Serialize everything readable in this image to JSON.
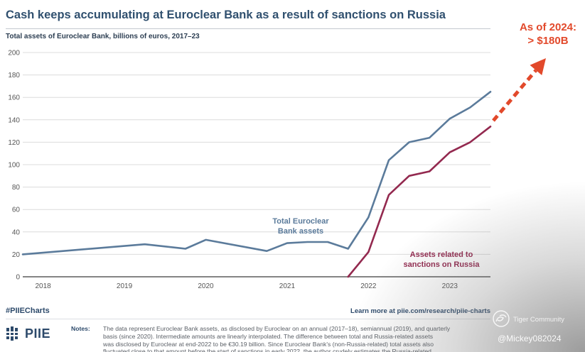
{
  "colors": {
    "title": "#30506f",
    "total_line": "#5b7b9b",
    "russia_line": "#93294f",
    "annotation": "#e2492b",
    "grid": "#dcdcdc"
  },
  "chart_data": {
    "type": "line",
    "title": "Cash keeps accumulating at Euroclear Bank as a result of sanctions on Russia",
    "subtitle": "Total assets of Euroclear Bank, billions of euros, 2017–23",
    "xlabel": "",
    "ylabel": "",
    "xlim": [
      2017.75,
      2023.5
    ],
    "ylim": [
      0,
      200
    ],
    "x_ticks": [
      "2018",
      "2019",
      "2020",
      "2021",
      "2022",
      "2023"
    ],
    "y_ticks": [
      0,
      20,
      40,
      60,
      80,
      100,
      120,
      140,
      160,
      180,
      200
    ],
    "grid": true,
    "legend": "none",
    "series": [
      {
        "name_lines": [
          "Total Euroclear",
          "Bank assets"
        ],
        "color": "#5b7b9b",
        "x": [
          2017.75,
          2019.25,
          2019.75,
          2020.0,
          2020.75,
          2021.0,
          2021.25,
          2021.5,
          2021.75,
          2022.0,
          2022.25,
          2022.5,
          2022.75,
          2023.0,
          2023.25,
          2023.5
        ],
        "y": [
          20,
          29,
          25,
          33,
          23,
          30,
          31,
          31,
          25,
          53,
          104,
          120,
          124,
          141,
          151,
          165
        ]
      },
      {
        "name_lines": [
          "Assets related to",
          "sanctions on Russia"
        ],
        "color": "#93294f",
        "x": [
          2021.75,
          2022.0,
          2022.25,
          2022.5,
          2022.75,
          2023.0,
          2023.25,
          2023.5
        ],
        "y": [
          0,
          22,
          73,
          90,
          94,
          111,
          120,
          134
        ]
      }
    ],
    "annotation": {
      "lines": [
        "As of 2024:",
        "> $180B"
      ]
    }
  },
  "footer": {
    "tag": "#PIIECharts",
    "link_text": "Learn more at piie.com/research/piie-charts"
  },
  "logo": {
    "text": "PIIE"
  },
  "notes": {
    "label": "Notes:",
    "lines": [
      "The data represent Euroclear Bank assets, as disclosed by Euroclear on an annual (2017–18), semiannual (2019), and quarterly",
      "basis (since 2020). Intermediate amounts are linearly interpolated. The difference between total and Russia-related assets",
      "was disclosed by Euroclear at end-2022 to be €30.19 billion. Since Euroclear Bank's (non-Russia-related) total assets also",
      "fluctuated close to that amount before the start of sanctions in early 2022, the author crudely estimates the Russia-related"
    ]
  },
  "watermark": {
    "community": "Tiger Community",
    "handle": "@Mickey082024"
  }
}
